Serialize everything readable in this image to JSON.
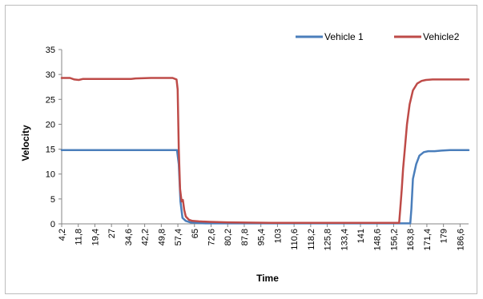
{
  "chart_data": {
    "type": "line",
    "xlabel": "Time",
    "ylabel": "Velocity",
    "ylim": [
      0,
      35
    ],
    "yticks": [
      0,
      5,
      10,
      15,
      20,
      25,
      30,
      35
    ],
    "xlim": [
      4.2,
      190.5
    ],
    "xtick_labels": [
      "4,2",
      "11,8",
      "19,4",
      "27",
      "34,6",
      "42,2",
      "49,8",
      "57,4",
      "65",
      "72,6",
      "80,2",
      "87,8",
      "95,4",
      "103",
      "110,6",
      "118,2",
      "125,8",
      "133,4",
      "141",
      "148,6",
      "156,2",
      "163,8",
      "171,4",
      "179",
      "186,6"
    ],
    "xtick_values": [
      4.2,
      11.8,
      19.4,
      27,
      34.6,
      42.2,
      49.8,
      57.4,
      65,
      72.6,
      80.2,
      87.8,
      95.4,
      103,
      110.6,
      118.2,
      125.8,
      133.4,
      141,
      148.6,
      156.2,
      163.8,
      171.4,
      179,
      186.6
    ],
    "legend_position": "top-right",
    "grid": false,
    "series": [
      {
        "name": "Vehicle 1",
        "color": "#4a7ebb",
        "x": [
          4.2,
          20,
          40,
          57.0,
          57.8,
          58.6,
          59.5,
          61,
          63,
          66,
          70,
          80,
          100,
          130,
          160,
          163.8,
          164.3,
          165.0,
          166.5,
          168,
          170,
          172,
          175,
          178,
          182,
          186.6,
          190.5
        ],
        "y": [
          14.8,
          14.8,
          14.8,
          14.8,
          12.0,
          4.5,
          1.2,
          0.6,
          0.3,
          0.2,
          0.1,
          0.1,
          0.1,
          0.1,
          0.1,
          0.1,
          3.0,
          9.0,
          12.0,
          13.7,
          14.4,
          14.6,
          14.6,
          14.7,
          14.8,
          14.8,
          14.8
        ]
      },
      {
        "name": "Vehicle2",
        "color": "#be4b48",
        "x": [
          4.2,
          8,
          10,
          12,
          14,
          20,
          30,
          36,
          38,
          45,
          55,
          56.8,
          57.3,
          57.8,
          58.4,
          59.1,
          59.7,
          60.3,
          61,
          62.5,
          64,
          67,
          72,
          80,
          100,
          130,
          158.7,
          159.2,
          159.9,
          160.5,
          161.3,
          162.3,
          163.5,
          165,
          167,
          169,
          171,
          174,
          178,
          183,
          190.5
        ],
        "y": [
          29.3,
          29.3,
          29.0,
          28.9,
          29.1,
          29.1,
          29.1,
          29.1,
          29.2,
          29.3,
          29.3,
          29.0,
          27.0,
          15.0,
          7.0,
          4.5,
          4.8,
          2.8,
          1.5,
          0.8,
          0.6,
          0.5,
          0.4,
          0.3,
          0.2,
          0.2,
          0.2,
          3.0,
          7.0,
          11.0,
          15.0,
          20.0,
          24.0,
          26.8,
          28.2,
          28.7,
          28.9,
          29.0,
          29.0,
          29.0,
          29.0
        ]
      }
    ]
  }
}
